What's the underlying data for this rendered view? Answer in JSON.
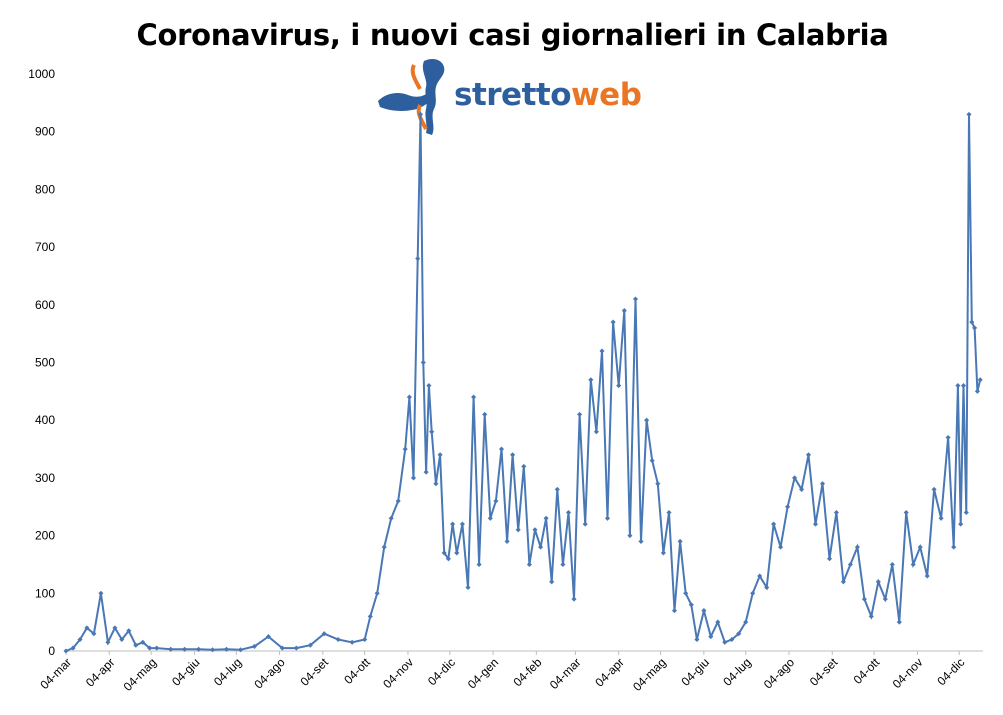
{
  "chart_data": {
    "type": "line",
    "title": "Coronavirus, i nuovi casi giornalieri in Calabria",
    "xlabel": "",
    "ylabel": "",
    "ylim": [
      0,
      1000
    ],
    "y_ticks": [
      "0",
      "100",
      "200",
      "300",
      "400",
      "500",
      "600",
      "700",
      "800",
      "900",
      "1000"
    ],
    "x_ticks": [
      "04-mar",
      "04-apr",
      "04-mag",
      "04-giu",
      "04-lug",
      "04-ago",
      "04-set",
      "04-ott",
      "04-nov",
      "04-dic",
      "04-gen",
      "04-feb",
      "04-mar",
      "04-apr",
      "04-mag",
      "04-giu",
      "04-lug",
      "04-ago",
      "04-set",
      "04-ott",
      "04-nov",
      "04-dic"
    ],
    "grid": false,
    "legend": "none",
    "series_color": "#4a78b5",
    "series": [
      {
        "x": [
          "2020-03-04",
          "2020-03-09",
          "2020-03-14",
          "2020-03-19",
          "2020-03-24",
          "2020-03-29",
          "2020-04-03",
          "2020-04-08",
          "2020-04-13",
          "2020-04-18",
          "2020-04-23",
          "2020-04-28",
          "2020-05-03",
          "2020-05-08",
          "2020-05-18",
          "2020-05-28",
          "2020-06-07",
          "2020-06-17",
          "2020-06-27",
          "2020-07-07",
          "2020-07-17",
          "2020-07-27",
          "2020-08-06",
          "2020-08-16",
          "2020-08-26",
          "2020-09-05",
          "2020-09-15",
          "2020-09-25",
          "2020-10-04",
          "2020-10-08",
          "2020-10-13",
          "2020-10-18",
          "2020-10-23",
          "2020-10-28",
          "2020-11-02",
          "2020-11-05",
          "2020-11-08",
          "2020-11-11",
          "2020-11-13",
          "2020-11-15",
          "2020-11-17",
          "2020-11-19",
          "2020-11-21",
          "2020-11-24",
          "2020-11-27",
          "2020-11-30",
          "2020-12-03",
          "2020-12-06",
          "2020-12-09",
          "2020-12-13",
          "2020-12-17",
          "2020-12-21",
          "2020-12-25",
          "2020-12-29",
          "2021-01-02",
          "2021-01-06",
          "2021-01-10",
          "2021-01-14",
          "2021-01-18",
          "2021-01-22",
          "2021-01-26",
          "2021-01-30",
          "2021-02-03",
          "2021-02-07",
          "2021-02-11",
          "2021-02-15",
          "2021-02-19",
          "2021-02-23",
          "2021-02-27",
          "2021-03-03",
          "2021-03-07",
          "2021-03-11",
          "2021-03-15",
          "2021-03-19",
          "2021-03-23",
          "2021-03-27",
          "2021-03-31",
          "2021-04-04",
          "2021-04-08",
          "2021-04-12",
          "2021-04-16",
          "2021-04-20",
          "2021-04-24",
          "2021-04-28",
          "2021-05-02",
          "2021-05-06",
          "2021-05-10",
          "2021-05-14",
          "2021-05-18",
          "2021-05-22",
          "2021-05-26",
          "2021-05-30",
          "2021-06-04",
          "2021-06-09",
          "2021-06-14",
          "2021-06-19",
          "2021-06-24",
          "2021-06-29",
          "2021-07-04",
          "2021-07-09",
          "2021-07-14",
          "2021-07-19",
          "2021-07-24",
          "2021-07-29",
          "2021-08-03",
          "2021-08-08",
          "2021-08-13",
          "2021-08-18",
          "2021-08-23",
          "2021-08-28",
          "2021-09-02",
          "2021-09-07",
          "2021-09-12",
          "2021-09-17",
          "2021-09-22",
          "2021-09-27",
          "2021-10-02",
          "2021-10-07",
          "2021-10-12",
          "2021-10-17",
          "2021-10-22",
          "2021-10-27",
          "2021-11-01",
          "2021-11-06",
          "2021-11-11",
          "2021-11-16",
          "2021-11-21",
          "2021-11-26",
          "2021-11-30",
          "2021-12-03",
          "2021-12-05",
          "2021-12-07",
          "2021-12-09",
          "2021-12-11",
          "2021-12-13",
          "2021-12-15",
          "2021-12-17",
          "2021-12-19"
        ],
        "y": [
          0,
          5,
          20,
          40,
          30,
          100,
          15,
          40,
          20,
          35,
          10,
          15,
          5,
          5,
          3,
          3,
          3,
          2,
          3,
          2,
          8,
          25,
          5,
          5,
          10,
          30,
          20,
          15,
          20,
          60,
          100,
          180,
          230,
          260,
          350,
          440,
          300,
          680,
          930,
          500,
          310,
          460,
          380,
          290,
          340,
          170,
          160,
          220,
          170,
          220,
          110,
          440,
          150,
          410,
          230,
          260,
          350,
          190,
          340,
          210,
          320,
          150,
          210,
          180,
          230,
          120,
          280,
          150,
          240,
          90,
          410,
          220,
          470,
          380,
          520,
          230,
          570,
          460,
          590,
          200,
          610,
          190,
          400,
          330,
          290,
          170,
          240,
          70,
          190,
          100,
          80,
          20,
          70,
          25,
          50,
          15,
          20,
          30,
          50,
          100,
          130,
          110,
          220,
          180,
          250,
          300,
          280,
          340,
          220,
          290,
          160,
          240,
          120,
          150,
          180,
          90,
          60,
          120,
          90,
          150,
          50,
          240,
          150,
          180,
          130,
          280,
          230,
          370,
          180,
          460,
          220,
          460,
          240,
          930,
          570,
          560,
          450,
          470
        ]
      }
    ]
  }
}
